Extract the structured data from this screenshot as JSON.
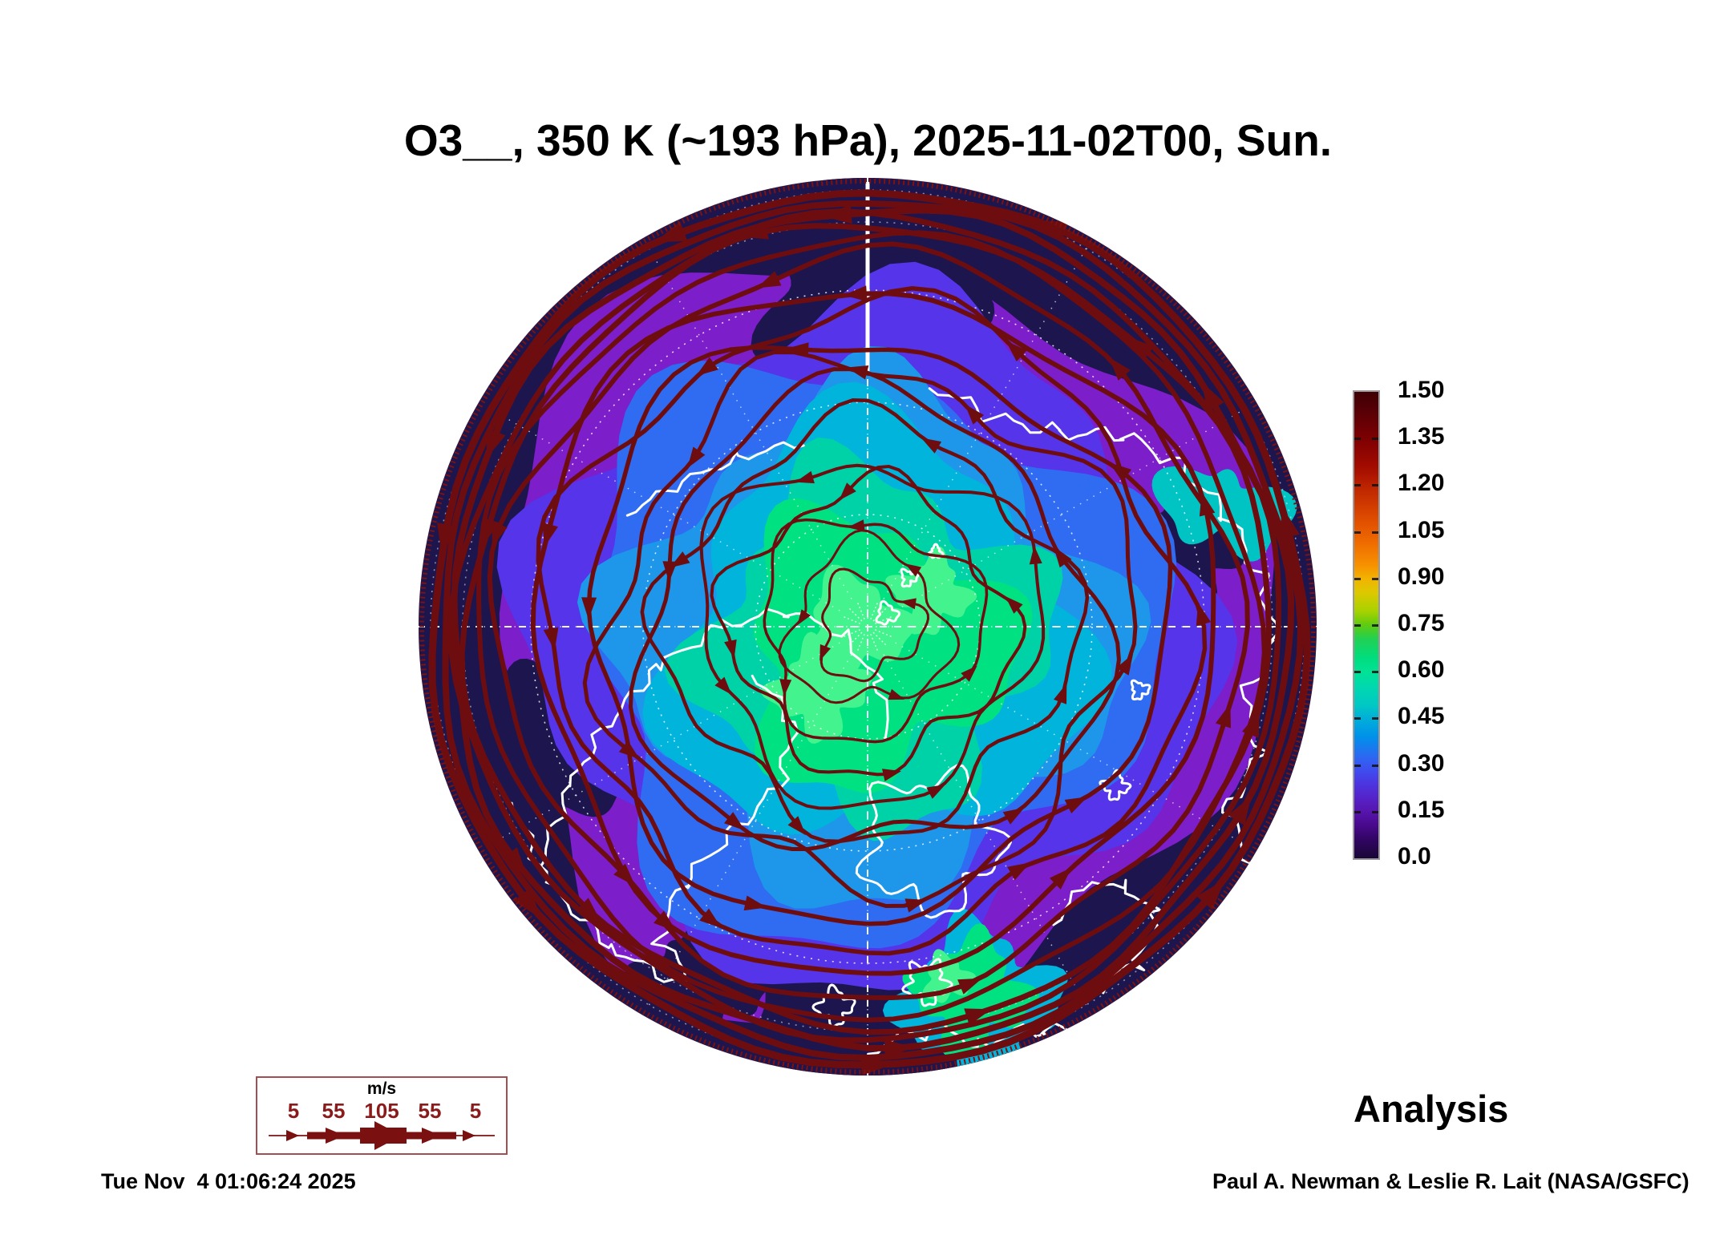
{
  "title": "O3__, 350 K (~193 hPa), 2025-11-02T00, Sun.",
  "colorbar": {
    "ticks": [
      "1.50",
      "1.35",
      "1.20",
      "1.05",
      "0.90",
      "0.75",
      "0.60",
      "0.45",
      "0.30",
      "0.15",
      "0.0"
    ]
  },
  "wind_legend": {
    "units": "m/s",
    "values": [
      "5",
      "55",
      "105",
      "55",
      "5"
    ]
  },
  "status": {
    "analysis_label": "Analysis"
  },
  "footer": {
    "timestamp": "Tue Nov  4 01:06:24 2025",
    "credit": "Paul A. Newman & Leslie R. Lait (NASA/GSFC)"
  },
  "chart_data": {
    "type": "heatmap",
    "title": "O3__, 350 K (~193 hPa), 2025-11-02T00, Sun.",
    "variable": "O3__",
    "surface": "350 K (~193 hPa)",
    "valid_time": "2025-11-02T00",
    "weekday": "Sun.",
    "product": "Analysis",
    "projection_note": "Northern Hemisphere polar view, Europe at bottom, white coastlines, dotted white graticule",
    "colorbar": {
      "min": 0.0,
      "max": 1.5,
      "tick_values": [
        1.5,
        1.35,
        1.2,
        1.05,
        0.9,
        0.75,
        0.6,
        0.45,
        0.3,
        0.15,
        0.0
      ],
      "tick_colors_top_to_bottom": [
        "#4a0004",
        "#8a0000",
        "#c93200",
        "#ef6a00",
        "#f2b300",
        "#57ca12",
        "#00e295",
        "#00b0d8",
        "#2f62f2",
        "#5617b2",
        "#190735"
      ]
    },
    "wind_scale": {
      "units": "m/s",
      "values": [
        5,
        55,
        105,
        55,
        5
      ]
    },
    "streamlines": {
      "color": "#6e0d10",
      "depicts": "wind flow, thickness scaled by speed up to 105 m/s, circumpolar vortex"
    },
    "field_estimates": [
      {
        "region": "polar cap / center",
        "o3_range": [
          0.45,
          0.75
        ]
      },
      {
        "region": "midlatitude ring (purple/blue)",
        "o3_range": [
          0.1,
          0.45
        ]
      },
      {
        "region": "outer rim (dark navy band)",
        "o3_range": [
          0.0,
          0.15
        ]
      }
    ]
  }
}
